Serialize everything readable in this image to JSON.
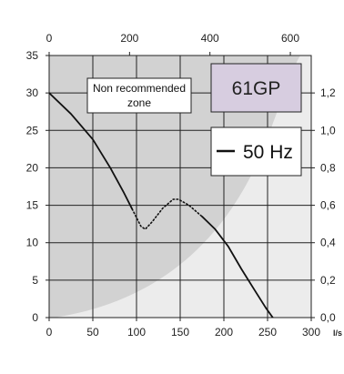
{
  "chart_data": {
    "type": "line",
    "x_unit": "l/s",
    "xlim": [
      0,
      300
    ],
    "ylim": [
      0,
      35
    ],
    "x_ticks": [
      0,
      50,
      100,
      150,
      200,
      250,
      300
    ],
    "y_ticks": [
      0,
      5,
      10,
      15,
      20,
      25,
      30,
      35
    ],
    "top_axis": {
      "xlim": [
        0,
        652
      ],
      "ticks": [
        0,
        200,
        400,
        600
      ]
    },
    "right_axis": {
      "ylim": [
        0,
        1.4
      ],
      "ticks": [
        "0,0",
        "0,2",
        "0,4",
        "0,6",
        "0,8",
        "1,0",
        "1,2"
      ]
    },
    "grid": true,
    "series": [
      {
        "name": "50 Hz",
        "color": "#111111",
        "segments": [
          {
            "style": "solid",
            "points": [
              [
                0,
                30
              ],
              [
                25,
                27.2
              ],
              [
                50,
                23.8
              ],
              [
                70,
                20
              ],
              [
                85,
                16.8
              ],
              [
                95,
                14.5
              ]
            ]
          },
          {
            "style": "dotted",
            "points": [
              [
                95,
                14.5
              ],
              [
                105,
                12.2
              ],
              [
                110,
                11.8
              ],
              [
                118,
                12.8
              ],
              [
                130,
                14.6
              ],
              [
                142,
                15.8
              ],
              [
                148,
                15.8
              ],
              [
                160,
                15
              ],
              [
                175,
                13.5
              ]
            ]
          },
          {
            "style": "solid",
            "points": [
              [
                175,
                13.5
              ],
              [
                190,
                11.8
              ],
              [
                205,
                9.5
              ],
              [
                220,
                6.5
              ],
              [
                235,
                3.7
              ],
              [
                248,
                1.3
              ],
              [
                256,
                0
              ]
            ]
          }
        ]
      }
    ],
    "shaded_region_label": "Non recommended\nzone",
    "shaded_region_lines": [
      "Non recommended",
      "zone"
    ],
    "model_label": "61GP",
    "legend_label": "50 Hz",
    "legend_placement": "top-right",
    "colors": {
      "shade_dark": "#d2d2d2",
      "shade_light": "#ececec",
      "model_box": "#d7cde0",
      "grid": "#222222"
    }
  }
}
